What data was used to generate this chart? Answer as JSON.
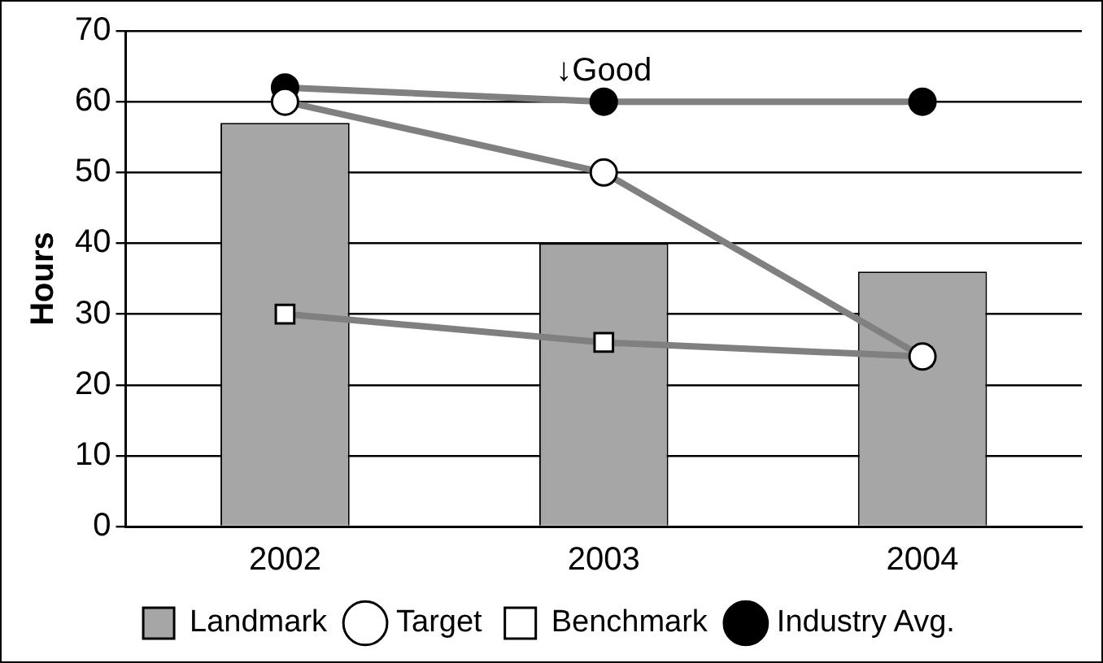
{
  "chart_data": {
    "type": "bar",
    "ylabel": "Hours",
    "categories": [
      "2002",
      "2003",
      "2004"
    ],
    "series": [
      {
        "name": "Landmark",
        "color": "#a6a6a6",
        "values": [
          57,
          40,
          36
        ]
      },
      {
        "name": "Target",
        "type": "line",
        "color": "#808080",
        "marker": "circle",
        "values": [
          60,
          50,
          24
        ]
      },
      {
        "name": "Benchmark",
        "type": "line",
        "color": "#808080",
        "marker": "square",
        "values": [
          30,
          26,
          24
        ]
      },
      {
        "name": "Industry Avg.",
        "type": "line",
        "color": "#808080",
        "marker": "circle",
        "values": [
          62,
          60,
          60
        ]
      }
    ],
    "ylim": [
      0,
      70
    ],
    "yticks": [
      0,
      10,
      20,
      30,
      40,
      50,
      60,
      70
    ],
    "grid": "y",
    "legend": "bottom",
    "annotations": [
      {
        "text": "↓Good",
        "x": "2003",
        "y": 62
      }
    ]
  }
}
